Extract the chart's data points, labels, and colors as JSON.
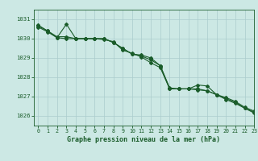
{
  "title": "Graphe pression niveau de la mer (hPa)",
  "xlim": [
    -0.5,
    23
  ],
  "ylim": [
    1025.5,
    1031.5
  ],
  "yticks": [
    1026,
    1027,
    1028,
    1029,
    1030,
    1031
  ],
  "xticks": [
    0,
    1,
    2,
    3,
    4,
    5,
    6,
    7,
    8,
    9,
    10,
    11,
    12,
    13,
    14,
    15,
    16,
    17,
    18,
    19,
    20,
    21,
    22,
    23
  ],
  "background_color": "#cce8e4",
  "grid_color": "#aacccc",
  "line_color": "#1a5c2a",
  "series": [
    [
      1030.7,
      1030.4,
      1030.1,
      1030.1,
      1030.0,
      1030.0,
      1030.0,
      1030.0,
      1029.8,
      1029.5,
      1029.2,
      1029.1,
      1028.9,
      1028.6,
      1027.4,
      1027.4,
      1027.4,
      1027.35,
      1027.3,
      1027.1,
      1026.9,
      1026.7,
      1026.4,
      1026.2
    ],
    [
      1030.65,
      1030.4,
      1030.05,
      1030.75,
      1030.0,
      1030.0,
      1030.0,
      1029.95,
      1029.85,
      1029.4,
      1029.25,
      1029.05,
      1028.75,
      1028.5,
      1027.4,
      1027.4,
      1027.4,
      1027.6,
      1027.55,
      1027.1,
      1026.95,
      1026.75,
      1026.45,
      1026.25
    ],
    [
      1030.6,
      1030.35,
      1030.05,
      1030.0,
      1030.0,
      1030.0,
      1030.0,
      1030.0,
      1029.8,
      1029.5,
      1029.2,
      1029.15,
      1029.0,
      1028.6,
      1027.45,
      1027.4,
      1027.4,
      1027.4,
      1027.3,
      1027.1,
      1026.85,
      1026.65,
      1026.4,
      1026.15
    ]
  ]
}
